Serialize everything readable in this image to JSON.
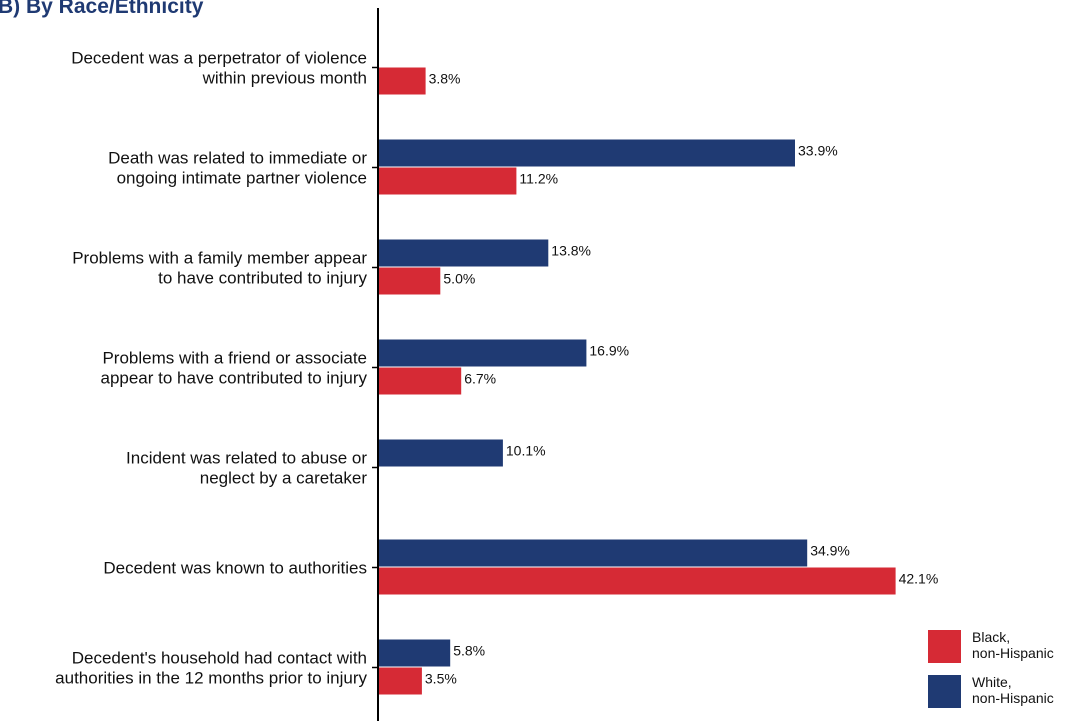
{
  "chart_data": {
    "type": "bar",
    "orientation": "horizontal",
    "title": "B)  By Race/Ethnicity",
    "categories": [
      [
        "Decedent was a perpetrator of violence",
        "within previous month"
      ],
      [
        "Death was related to immediate or",
        "ongoing intimate partner violence"
      ],
      [
        "Problems with a family member appear",
        "to have contributed to injury"
      ],
      [
        "Problems with a friend or associate",
        "appear to have contributed to injury"
      ],
      [
        "Incident was related to abuse or",
        "neglect by a caretaker"
      ],
      [
        "Decedent was known to authorities"
      ],
      [
        "Decedent's household had contact with",
        "authorities in the 12 months prior to injury"
      ]
    ],
    "series": [
      {
        "name": "White, non-Hispanic",
        "legend_lines": [
          "White,",
          "non-Hispanic"
        ],
        "color": "#1f3a73",
        "values": [
          null,
          33.9,
          13.8,
          16.9,
          10.1,
          34.9,
          5.8
        ],
        "labels": [
          "",
          "33.9%",
          "13.8%",
          "16.9%",
          "10.1%",
          "34.9%",
          "5.8%"
        ]
      },
      {
        "name": "Black, non-Hispanic",
        "legend_lines": [
          "Black,",
          "non-Hispanic"
        ],
        "color": "#d62a35",
        "values": [
          3.8,
          11.2,
          5.0,
          6.7,
          null,
          42.1,
          3.5
        ],
        "labels": [
          "3.8%",
          "11.2%",
          "5.0%",
          "6.7%",
          "",
          "42.1%",
          "3.5%"
        ]
      }
    ],
    "legend_order": [
      1,
      0
    ],
    "legend_position": "bottom-right",
    "xlim": [
      0,
      45
    ],
    "grid": false,
    "x_axis_visible": false
  }
}
